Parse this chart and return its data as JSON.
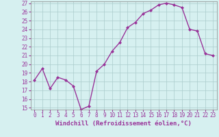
{
  "x": [
    0,
    1,
    2,
    3,
    4,
    5,
    6,
    7,
    8,
    9,
    10,
    11,
    12,
    13,
    14,
    15,
    16,
    17,
    18,
    19,
    20,
    21,
    22,
    23
  ],
  "y": [
    18.2,
    19.5,
    17.2,
    18.5,
    18.2,
    17.5,
    14.8,
    15.2,
    19.2,
    20.0,
    21.5,
    22.5,
    24.2,
    24.8,
    25.8,
    26.2,
    26.8,
    27.0,
    26.8,
    26.5,
    24.0,
    23.8,
    21.2,
    21.0
  ],
  "line_color": "#993399",
  "marker": "D",
  "marker_size": 2.0,
  "bg_color": "#d6f0f0",
  "grid_color": "#aacccc",
  "xlabel": "Windchill (Refroidissement éolien,°C)",
  "ylim_min": 14.8,
  "ylim_max": 27.2,
  "xlim_min": -0.5,
  "xlim_max": 23.5,
  "yticks": [
    15,
    16,
    17,
    18,
    19,
    20,
    21,
    22,
    23,
    24,
    25,
    26,
    27
  ],
  "xticks": [
    0,
    1,
    2,
    3,
    4,
    5,
    6,
    7,
    8,
    9,
    10,
    11,
    12,
    13,
    14,
    15,
    16,
    17,
    18,
    19,
    20,
    21,
    22,
    23
  ],
  "tick_fontsize": 5.5,
  "xlabel_fontsize": 6.5,
  "line_width": 1.0
}
